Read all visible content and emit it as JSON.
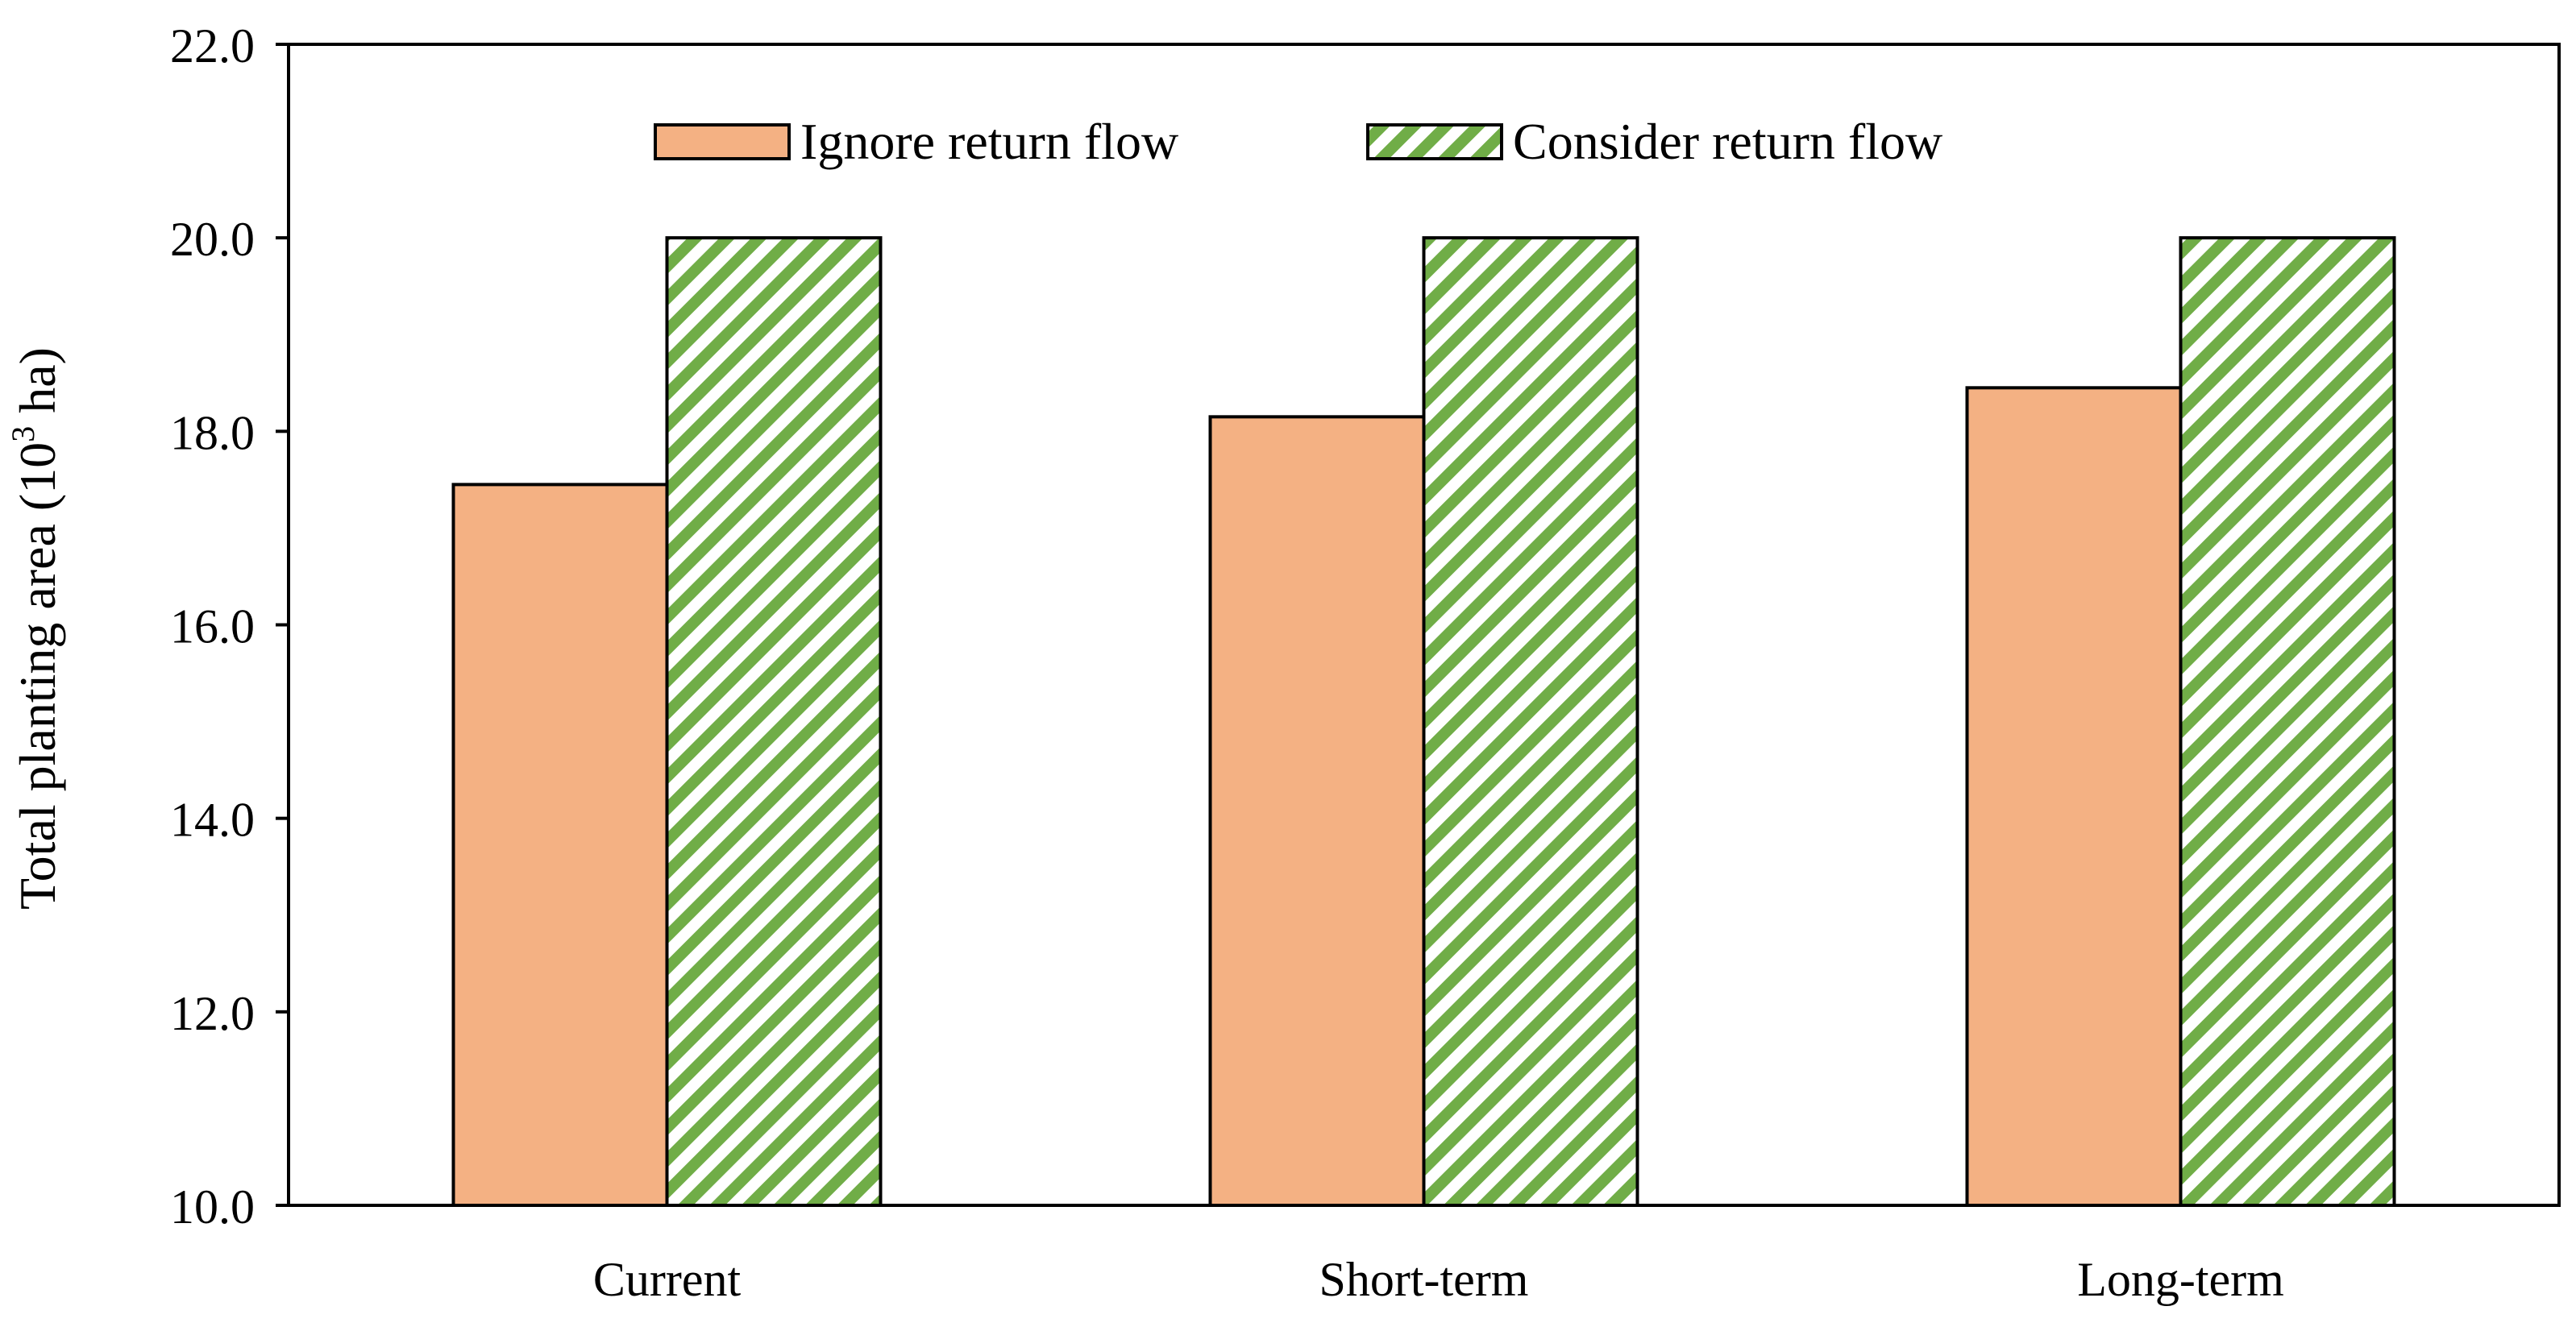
{
  "chart_data": {
    "type": "bar",
    "title": "",
    "xlabel": "",
    "ylabel": "Total planting area (10",
    "ylabel_superscript": "3",
    "ylabel_suffix": " ha)",
    "categories": [
      "Current",
      "Short-term",
      "Long-term"
    ],
    "ylim": [
      10.0,
      22.0
    ],
    "ytick_values": [
      10.0,
      12.0,
      14.0,
      16.0,
      18.0,
      20.0,
      22.0
    ],
    "ytick_labels": [
      "10.0",
      "12.0",
      "14.0",
      "16.0",
      "18.0",
      "20.0",
      "22.0"
    ],
    "grid": false,
    "legend_placement": "top-center",
    "series": [
      {
        "name": "Ignore return flow",
        "values": [
          17.45,
          18.15,
          18.45
        ],
        "color": "#F4B183",
        "pattern": "solid"
      },
      {
        "name": "Consider return flow",
        "values": [
          20.0,
          20.0,
          20.0
        ],
        "color": "#70AD47",
        "pattern": "diagonal-stripes"
      }
    ]
  }
}
